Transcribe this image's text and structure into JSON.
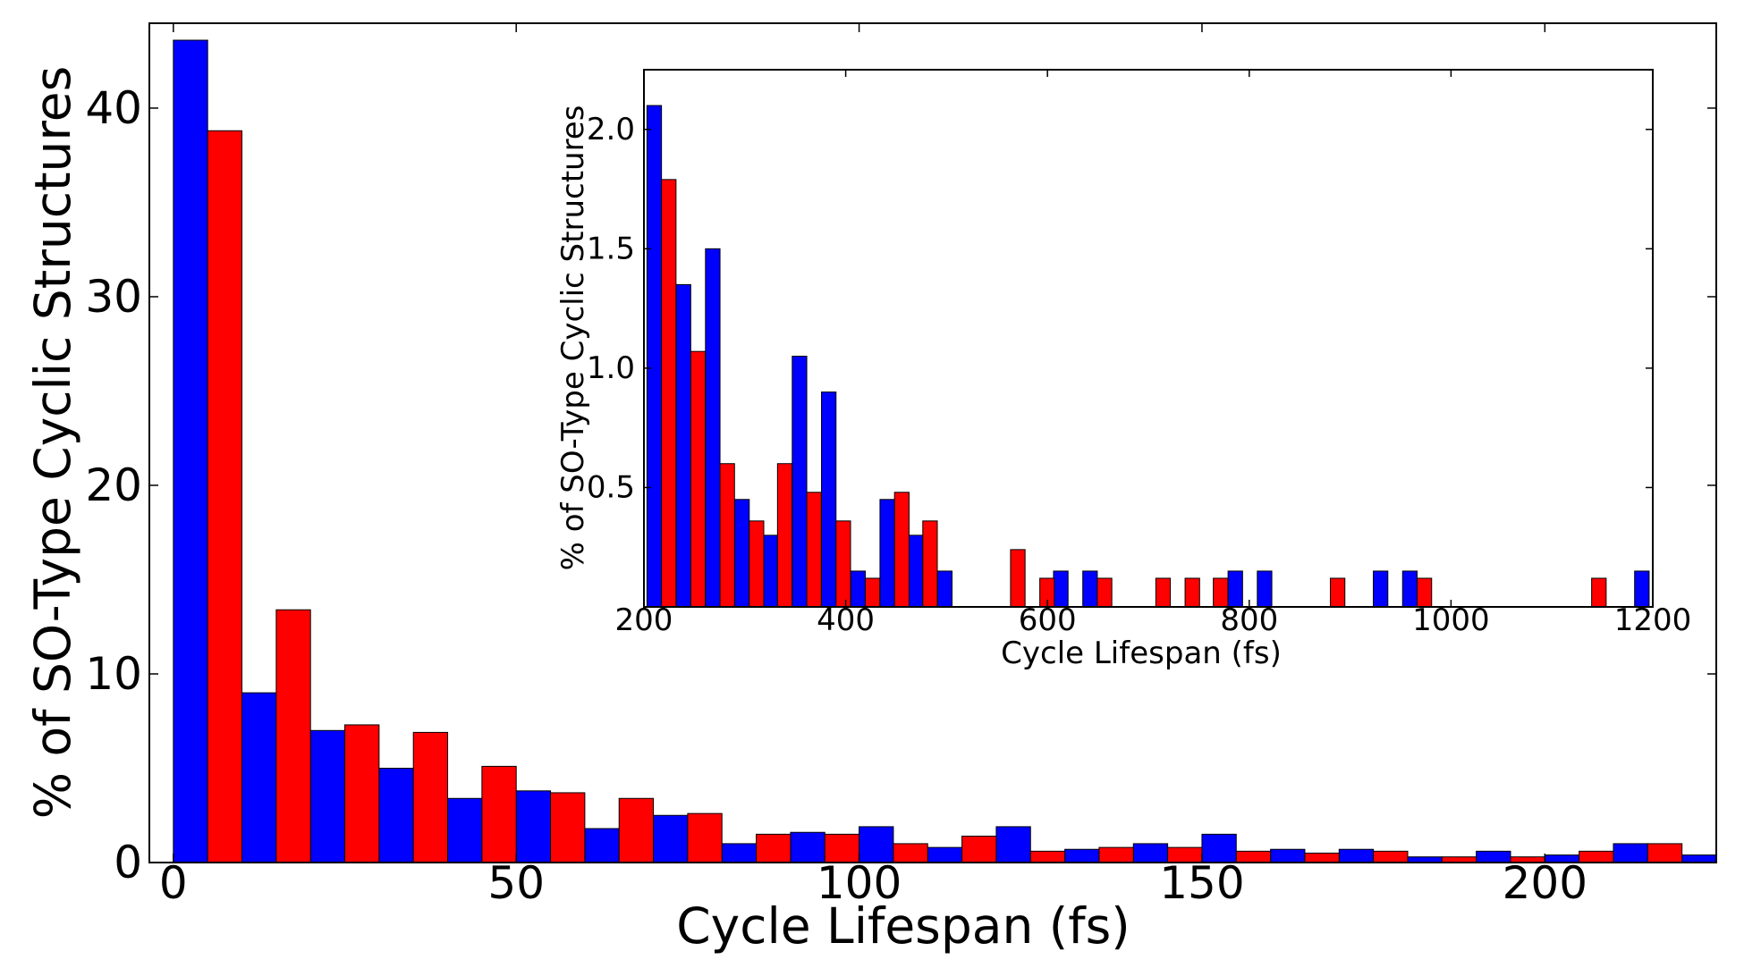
{
  "colors": {
    "series_a": "#0000ff",
    "series_b": "#ff0000",
    "axes": "#000000",
    "background": "#ffffff"
  },
  "chart_data": [
    {
      "type": "bar",
      "xlabel": "Cycle Lifespan (fs)",
      "ylabel": "% of SO-Type Cyclic Structures",
      "xlim": [
        -3.5,
        225
      ],
      "ylim": [
        0,
        44.5
      ],
      "xticks": [
        0,
        50,
        100,
        150,
        200
      ],
      "xtick_labels": [
        "0",
        "50",
        "100",
        "150",
        "200"
      ],
      "yticks": [
        0,
        10,
        20,
        30,
        40
      ],
      "ytick_labels": [
        "0",
        "10",
        "20",
        "30",
        "40"
      ],
      "grid": false,
      "bin_width": 10,
      "x": [
        0,
        10,
        20,
        30,
        40,
        50,
        60,
        70,
        80,
        90,
        100,
        110,
        120,
        130,
        140,
        150,
        160,
        170,
        180,
        190,
        200,
        210,
        220
      ],
      "series": [
        {
          "values": [
            43.6,
            9.0,
            7.0,
            5.0,
            3.4,
            3.8,
            1.8,
            2.5,
            1.0,
            1.6,
            1.9,
            0.8,
            1.9,
            0.7,
            1.0,
            1.5,
            0.7,
            0.7,
            0.3,
            0.6,
            0.4,
            1.0,
            0.4
          ]
        },
        {
          "values": [
            38.8,
            13.4,
            7.3,
            6.9,
            5.1,
            3.7,
            3.4,
            2.6,
            1.5,
            1.5,
            1.0,
            1.4,
            0.6,
            0.8,
            0.8,
            0.6,
            0.5,
            0.6,
            0.3,
            0.3,
            0.6,
            1.0,
            0.6
          ]
        }
      ]
    },
    {
      "type": "bar",
      "xlabel": "Cycle Lifespan (fs)",
      "ylabel": "% of SO-Type Cyclic Structures",
      "xlim": [
        200,
        1200
      ],
      "ylim": [
        0,
        2.25
      ],
      "xticks": [
        200,
        400,
        600,
        800,
        1000,
        1200
      ],
      "xtick_labels": [
        "200",
        "400",
        "600",
        "800",
        "1000",
        "1200"
      ],
      "yticks": [
        0.5,
        1.0,
        1.5,
        2.0
      ],
      "ytick_labels": [
        "0.5",
        "1.0",
        "1.5",
        "2.0"
      ],
      "grid": false,
      "bin_width": 28.8,
      "x": [
        203,
        232,
        261,
        290,
        318,
        347,
        376,
        405,
        434,
        462,
        491,
        520,
        549,
        578,
        606,
        635,
        664,
        693,
        722,
        750,
        779,
        808,
        837,
        866,
        894,
        923,
        952,
        981,
        1010,
        1038,
        1067,
        1096,
        1125,
        1154,
        1182
      ],
      "series": [
        {
          "values": [
            2.1,
            1.35,
            1.5,
            0.45,
            0.3,
            1.05,
            0.9,
            0.15,
            0.45,
            0.3,
            0.15,
            0,
            0,
            0,
            0.15,
            0.15,
            0,
            0,
            0,
            0,
            0.15,
            0.15,
            0,
            0,
            0,
            0.15,
            0.15,
            0,
            0,
            0,
            0,
            0,
            0,
            0,
            0.15
          ]
        },
        {
          "values": [
            1.79,
            1.07,
            0.6,
            0.36,
            0.6,
            0.48,
            0.36,
            0.12,
            0.48,
            0.36,
            0,
            0,
            0.24,
            0.12,
            0,
            0.12,
            0,
            0.12,
            0.12,
            0.12,
            0,
            0,
            0,
            0.12,
            0,
            0,
            0.12,
            0,
            0,
            0,
            0,
            0,
            0.12,
            0,
            0
          ]
        }
      ]
    }
  ]
}
